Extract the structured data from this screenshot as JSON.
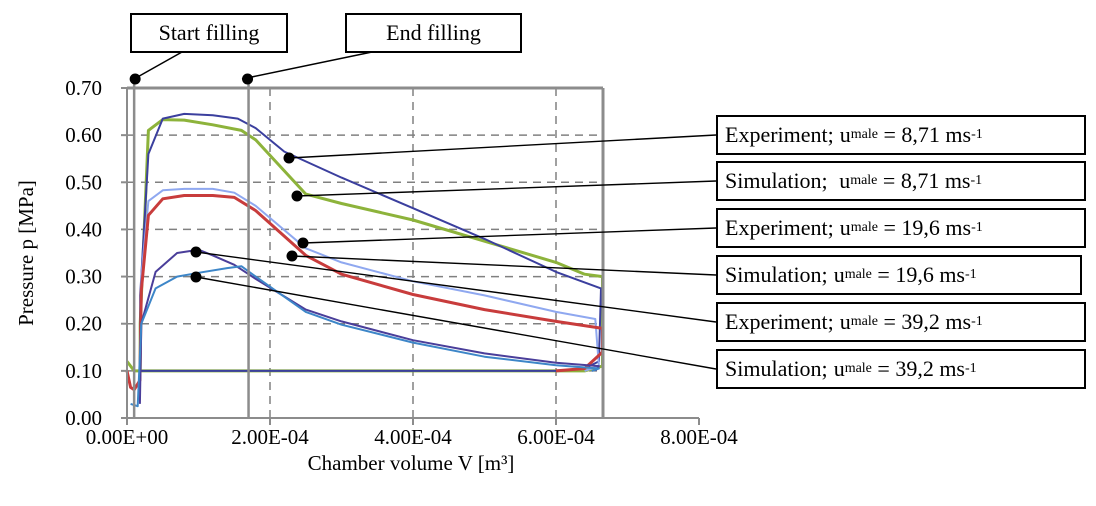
{
  "chart_data": {
    "type": "line",
    "xlabel": "Chamber volume V [m³]",
    "ylabel": "Pressure p [MPa]",
    "xlim": [
      0,
      0.0008
    ],
    "ylim": [
      0,
      0.7
    ],
    "x_ticks": [
      "0.00E+00",
      "2.00E-04",
      "4.00E-04",
      "6.00E-04",
      "8.00E-04"
    ],
    "y_ticks": [
      "0.00",
      "0.10",
      "0.20",
      "0.30",
      "0.40",
      "0.50",
      "0.60",
      "0.70"
    ],
    "grid": "dashed",
    "vertical_markers": [
      {
        "label": "Start filling",
        "x": 1e-05
      },
      {
        "label": "End filling",
        "x": 0.00017
      }
    ],
    "series": [
      {
        "name": "Experiment; u_male = 8,71 ms-1",
        "color": "#3b3f9e",
        "points": [
          [
            1.85e-05,
            0.1
          ],
          [
            1.85e-05,
            0.26
          ],
          [
            3e-05,
            0.56
          ],
          [
            5e-05,
            0.635
          ],
          [
            8e-05,
            0.645
          ],
          [
            0.00012,
            0.642
          ],
          [
            0.000155,
            0.635
          ],
          [
            0.00018,
            0.615
          ],
          [
            0.00022,
            0.565
          ],
          [
            0.0003,
            0.51
          ],
          [
            0.0004,
            0.445
          ],
          [
            0.0005,
            0.38
          ],
          [
            0.0006,
            0.31
          ],
          [
            0.000663,
            0.275
          ],
          [
            0.00066,
            0.12
          ],
          [
            0.00064,
            0.105
          ],
          [
            0.0006,
            0.1
          ],
          [
            0.0002,
            0.1
          ],
          [
            1.85e-05,
            0.1
          ]
        ]
      },
      {
        "name": "Simulation; u_male = 8,71 ms-1",
        "color": "#8db33b",
        "points": [
          [
            1.85e-05,
            0.1
          ],
          [
            1.85e-05,
            0.2
          ],
          [
            3e-05,
            0.61
          ],
          [
            5e-05,
            0.633
          ],
          [
            8e-05,
            0.632
          ],
          [
            0.00012,
            0.622
          ],
          [
            0.00016,
            0.61
          ],
          [
            0.00018,
            0.59
          ],
          [
            0.00025,
            0.475
          ],
          [
            0.0003,
            0.455
          ],
          [
            0.0004,
            0.42
          ],
          [
            0.0005,
            0.375
          ],
          [
            0.0006,
            0.33
          ],
          [
            0.00064,
            0.305
          ],
          [
            0.000665,
            0.3
          ],
          [
            0.000665,
            0.11
          ],
          [
            0.00064,
            0.1
          ],
          [
            0.0005,
            0.1
          ],
          [
            0.0002,
            0.1
          ],
          [
            1e-05,
            0.1
          ],
          [
            0.0,
            0.12
          ]
        ]
      },
      {
        "name": "Experiment; u_male = 19,6 ms-1",
        "color": "#8fa8f0",
        "points": [
          [
            1.8e-05,
            0.06
          ],
          [
            2e-05,
            0.3
          ],
          [
            3e-05,
            0.46
          ],
          [
            5e-05,
            0.483
          ],
          [
            8e-05,
            0.486
          ],
          [
            0.00012,
            0.486
          ],
          [
            0.00015,
            0.478
          ],
          [
            0.00018,
            0.45
          ],
          [
            0.00025,
            0.36
          ],
          [
            0.0003,
            0.33
          ],
          [
            0.0004,
            0.29
          ],
          [
            0.0005,
            0.26
          ],
          [
            0.0006,
            0.225
          ],
          [
            0.000655,
            0.21
          ],
          [
            0.00066,
            0.11
          ],
          [
            0.00064,
            0.1
          ]
        ]
      },
      {
        "name": "Simulation; u_male = 19,6 ms-1",
        "color": "#c83c3c",
        "points": [
          [
            0.0,
            0.1
          ],
          [
            5e-06,
            0.065
          ],
          [
            1e-05,
            0.06
          ],
          [
            1.8e-05,
            0.08
          ],
          [
            2e-05,
            0.27
          ],
          [
            3e-05,
            0.43
          ],
          [
            5e-05,
            0.465
          ],
          [
            8e-05,
            0.472
          ],
          [
            0.00012,
            0.472
          ],
          [
            0.00015,
            0.468
          ],
          [
            0.00018,
            0.44
          ],
          [
            0.00025,
            0.345
          ],
          [
            0.0003,
            0.305
          ],
          [
            0.0004,
            0.262
          ],
          [
            0.0005,
            0.23
          ],
          [
            0.0006,
            0.205
          ],
          [
            0.000665,
            0.19
          ],
          [
            0.000665,
            0.14
          ],
          [
            0.00064,
            0.105
          ],
          [
            0.0006,
            0.1
          ]
        ]
      },
      {
        "name": "Experiment; u_male = 39,2 ms-1",
        "color": "#4a3e9a",
        "points": [
          [
            1.8e-05,
            0.03
          ],
          [
            2e-05,
            0.2
          ],
          [
            4e-05,
            0.31
          ],
          [
            7e-05,
            0.35
          ],
          [
            0.0001,
            0.357
          ],
          [
            0.00012,
            0.345
          ],
          [
            0.00015,
            0.325
          ],
          [
            0.00018,
            0.295
          ],
          [
            0.00025,
            0.23
          ],
          [
            0.0003,
            0.205
          ],
          [
            0.0004,
            0.165
          ],
          [
            0.0005,
            0.137
          ],
          [
            0.0006,
            0.117
          ],
          [
            0.00066,
            0.11
          ],
          [
            0.000655,
            0.1
          ]
        ]
      },
      {
        "name": "Simulation; u_male = 39,2 ms-1",
        "color": "#3d86c8",
        "points": [
          [
            5e-06,
            0.03
          ],
          [
            1.5e-05,
            0.025
          ],
          [
            2e-05,
            0.2
          ],
          [
            4e-05,
            0.275
          ],
          [
            7e-05,
            0.3
          ],
          [
            0.0001,
            0.308
          ],
          [
            0.00014,
            0.318
          ],
          [
            0.00016,
            0.322
          ],
          [
            0.00018,
            0.3
          ],
          [
            0.00025,
            0.225
          ],
          [
            0.0003,
            0.198
          ],
          [
            0.0004,
            0.16
          ],
          [
            0.0005,
            0.13
          ],
          [
            0.0006,
            0.112
          ],
          [
            0.00066,
            0.105
          ],
          [
            0.00065,
            0.1
          ]
        ]
      }
    ]
  },
  "callouts": [
    {
      "pre": "Experiment;",
      "u": "u",
      "sub": "male",
      "value": " = 8,71 ms",
      "sup": "-1"
    },
    {
      "pre": "Simulation; ",
      "u": "u",
      "sub": "male",
      "value": " = 8,71 ms",
      "sup": "-1"
    },
    {
      "pre": "Experiment;",
      "u": "u",
      "sub": "male",
      "value": " = 19,6 ms",
      "sup": "-1"
    },
    {
      "pre": "Simulation;",
      "u": "u",
      "sub": "male",
      "value": " = 19,6 ms",
      "sup": "-1"
    },
    {
      "pre": "Experiment;",
      "u": "u",
      "sub": "male",
      "value": " = 39,2 ms",
      "sup": "-1"
    },
    {
      "pre": "Simulation;",
      "u": "u",
      "sub": "male",
      "value": " = 39,2 ms",
      "sup": "-1"
    }
  ],
  "top_labels": {
    "start": "Start filling",
    "end": "End filling"
  }
}
